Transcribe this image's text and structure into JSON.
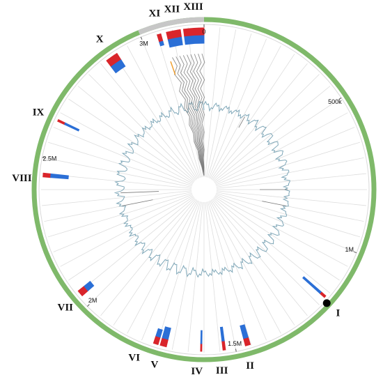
{
  "chart_data": {
    "type": "circular-genome-map",
    "genome_length": 3200000,
    "colors": {
      "outer_ring": "#7fb96a",
      "feature_red": "#d9252b",
      "feature_blue": "#2b6fd6",
      "gc_line": "#7fa7b8",
      "link_gray": "#7a7a7a",
      "link_orange": "#f0a030",
      "marker": "#000000",
      "spoke": "#dddddd"
    },
    "ticks": [
      {
        "label": "0",
        "value": 0
      },
      {
        "label": "500k",
        "value": 500000
      },
      {
        "label": "1M",
        "value": 1000000
      },
      {
        "label": "1.5M",
        "value": 1500000
      },
      {
        "label": "2M",
        "value": 2000000
      },
      {
        "label": "2.5M",
        "value": 2500000
      },
      {
        "label": "3M",
        "value": 3000000
      }
    ],
    "regions": [
      {
        "label": "I",
        "position": 1180000
      },
      {
        "label": "II",
        "position": 1470000
      },
      {
        "label": "III",
        "position": 1550000
      },
      {
        "label": "IV",
        "position": 1620000
      },
      {
        "label": "V",
        "position": 1740000
      },
      {
        "label": "VI",
        "position": 1800000
      },
      {
        "label": "VII",
        "position": 2040000
      },
      {
        "label": "VIII",
        "position": 2430000
      },
      {
        "label": "IX",
        "position": 2620000
      },
      {
        "label": "X",
        "position": 2890000
      },
      {
        "label": "XI",
        "position": 3060000
      },
      {
        "label": "XII",
        "position": 3110000
      },
      {
        "label": "XIII",
        "position": 3170000
      }
    ],
    "features": [
      {
        "start": 1165000,
        "end": 1172000,
        "red": 0.08,
        "blue": 0.3
      },
      {
        "start": 1452000,
        "end": 1468000,
        "red": 0.1,
        "blue": 0.17
      },
      {
        "start": 1532000,
        "end": 1540000,
        "red": 0.12,
        "blue": 0.18
      },
      {
        "start": 1607000,
        "end": 1611000,
        "red": 0.1,
        "blue": 0.17
      },
      {
        "start": 1720000,
        "end": 1740000,
        "red": 0.1,
        "blue": 0.15
      },
      {
        "start": 1747000,
        "end": 1762000,
        "red": 0.1,
        "blue": 0.1
      },
      {
        "start": 2035000,
        "end": 2055000,
        "red": 0.1,
        "blue": 0.1
      },
      {
        "start": 2440000,
        "end": 2452000,
        "red": 0.1,
        "blue": 0.23
      },
      {
        "start": 2622000,
        "end": 2628000,
        "red": 0.1,
        "blue": 0.2
      },
      {
        "start": 2870000,
        "end": 2910000,
        "red": 0.1,
        "blue": 0.1
      },
      {
        "start": 3050000,
        "end": 3062000,
        "red": 0.1,
        "blue": 0.05
      },
      {
        "start": 3080000,
        "end": 3125000,
        "red": 0.1,
        "blue": 0.1
      },
      {
        "start": 3135000,
        "end": 3200000,
        "red": 0.1,
        "blue": 0.1
      }
    ],
    "marker_position": 1180000
  }
}
